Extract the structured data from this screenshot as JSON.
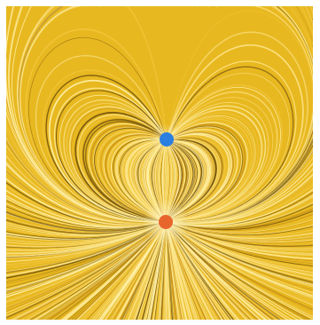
{
  "image": {
    "subject": "electric-field-streamlines",
    "palette": {
      "base": "#e8b820",
      "light": "#fff3b0",
      "pale": "#fde58a",
      "mid": "#f0c53a",
      "deep": "#c8921a",
      "dark": "#7a5a10",
      "frame_border": "#ffffff"
    },
    "charges": [
      {
        "name": "negative-charge",
        "color": "#2b7fe0",
        "sign": -1,
        "strength": 1.0
      },
      {
        "name": "positive-charge",
        "color": "#e8662c",
        "sign": 1,
        "strength": 2.0
      }
    ]
  }
}
